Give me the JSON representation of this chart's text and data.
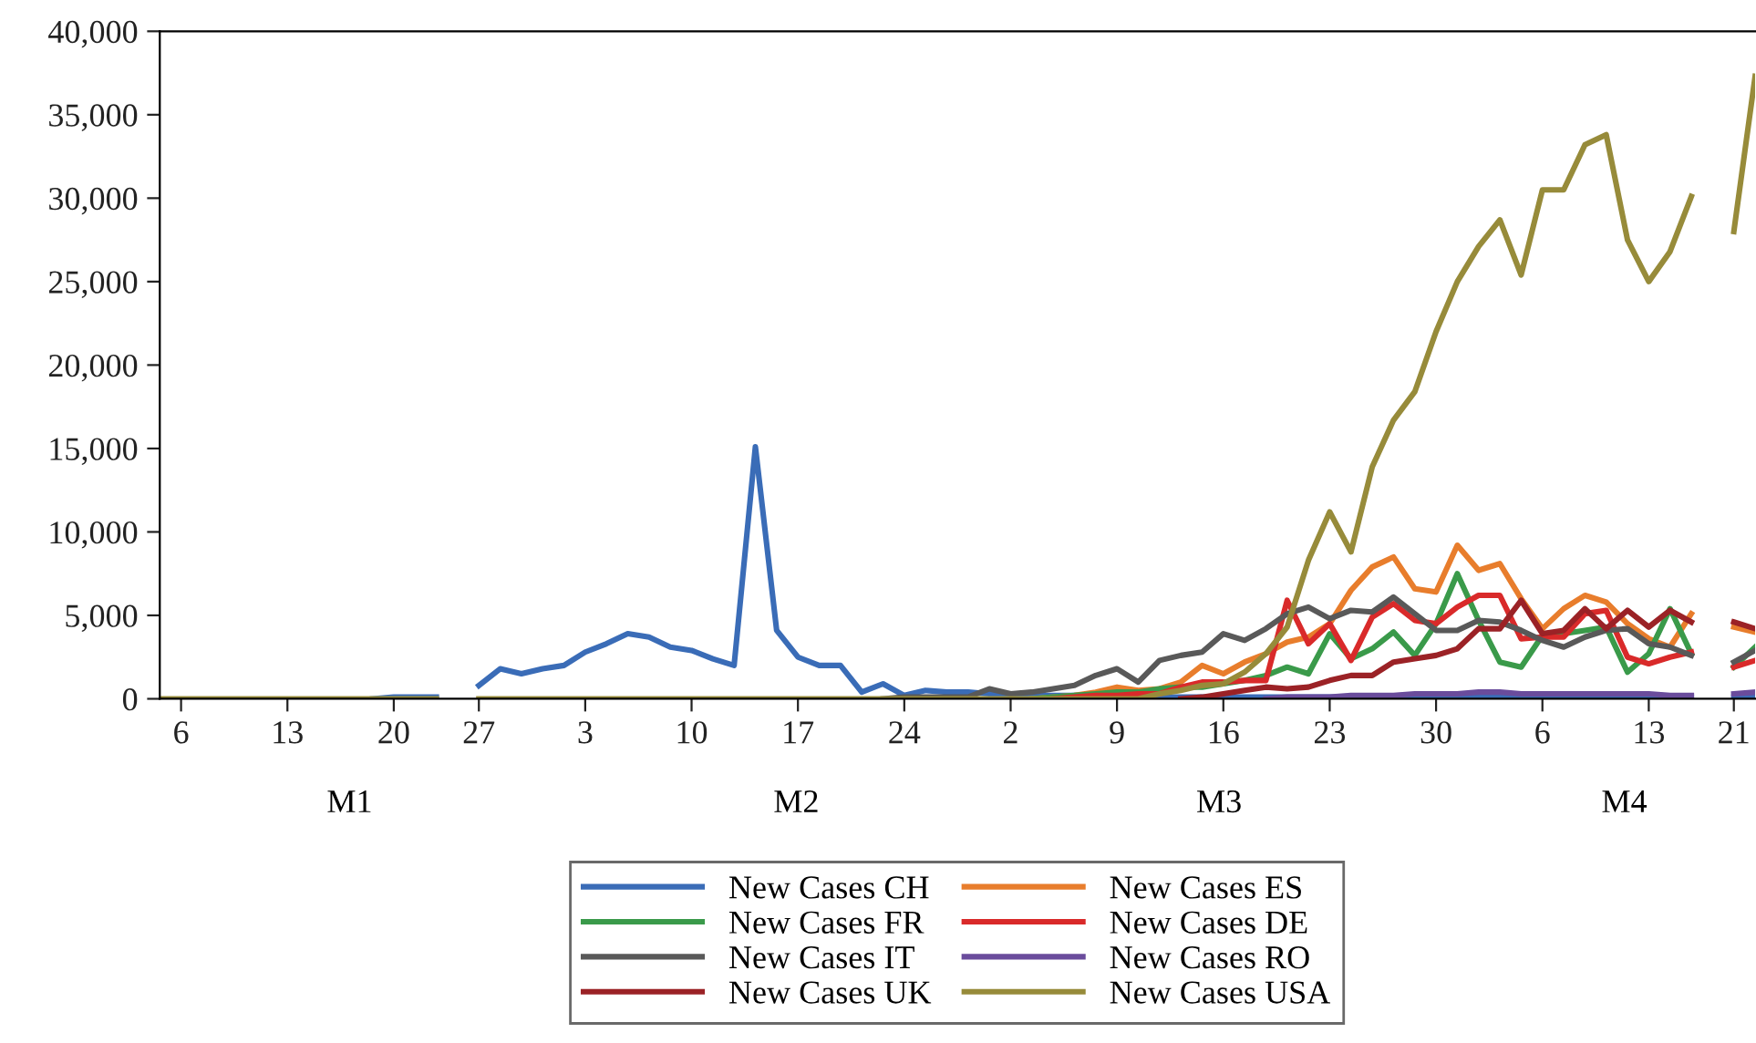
{
  "chart_data": {
    "type": "line",
    "annotations": [
      "M1",
      "M2",
      "M3",
      "M4"
    ],
    "categories": [
      null,
      "6",
      null,
      null,
      null,
      null,
      "13",
      null,
      null,
      null,
      null,
      "20",
      null,
      null,
      null,
      "27",
      null,
      null,
      null,
      null,
      "3",
      null,
      null,
      null,
      null,
      "10",
      null,
      null,
      null,
      null,
      "17",
      null,
      null,
      null,
      null,
      "24",
      null,
      null,
      null,
      null,
      "2",
      null,
      null,
      null,
      null,
      "9",
      null,
      null,
      null,
      null,
      "16",
      null,
      null,
      null,
      null,
      "23",
      null,
      null,
      null,
      null,
      "30",
      null,
      null,
      null,
      null,
      "6",
      null,
      null,
      null,
      null,
      "13",
      null,
      null,
      null,
      "21",
      null
    ],
    "ylim": [
      0,
      40000
    ],
    "yticks": [
      {
        "value": 0,
        "label": "0"
      },
      {
        "value": 5000,
        "label": "5,000"
      },
      {
        "value": 10000,
        "label": "10,000"
      },
      {
        "value": 15000,
        "label": "15,000"
      },
      {
        "value": 20000,
        "label": "20,000"
      },
      {
        "value": 25000,
        "label": "25,000"
      },
      {
        "value": 30000,
        "label": "30,000"
      },
      {
        "value": 35000,
        "label": "35,000"
      },
      {
        "value": 40000,
        "label": "40,000"
      }
    ],
    "grid": false,
    "legend": "bottom",
    "marker": "none",
    "line_style": "solid",
    "series": [
      {
        "name": "New Cases CH",
        "color": "#3a6cb7",
        "values": [
          null,
          null,
          null,
          null,
          null,
          null,
          null,
          null,
          null,
          null,
          0,
          100,
          100,
          100,
          null,
          800,
          1800,
          1500,
          1800,
          2000,
          2800,
          3300,
          3900,
          3700,
          3100,
          2900,
          2400,
          2000,
          15100,
          4100,
          2500,
          2000,
          2000,
          400,
          900,
          200,
          500,
          400,
          400,
          300,
          200,
          200,
          200,
          200,
          200,
          200,
          200,
          100,
          100,
          100,
          100,
          100,
          100,
          100,
          100,
          100,
          100,
          100,
          100,
          100,
          100,
          100,
          100,
          100,
          100,
          100,
          100,
          100,
          100,
          100,
          100,
          100,
          100,
          null,
          100,
          100
        ]
      },
      {
        "name": "New Cases ES",
        "color": "#e87d2c",
        "values": [
          null,
          null,
          null,
          null,
          null,
          null,
          null,
          null,
          null,
          null,
          null,
          null,
          null,
          null,
          null,
          null,
          null,
          null,
          null,
          null,
          null,
          null,
          null,
          null,
          null,
          null,
          null,
          null,
          null,
          null,
          null,
          null,
          null,
          null,
          null,
          null,
          null,
          null,
          null,
          null,
          null,
          0,
          100,
          200,
          400,
          700,
          500,
          600,
          1000,
          2000,
          1500,
          2200,
          2700,
          3400,
          3700,
          4500,
          6500,
          7900,
          8500,
          6600,
          6400,
          9200,
          7700,
          8100,
          6000,
          4200,
          5400,
          6200,
          5800,
          4500,
          3600,
          3100,
          5100,
          null,
          4300,
          4000
        ]
      },
      {
        "name": "New Cases FR",
        "color": "#3a9a4a",
        "values": [
          null,
          null,
          null,
          null,
          null,
          null,
          null,
          null,
          null,
          null,
          null,
          null,
          null,
          null,
          null,
          null,
          null,
          null,
          null,
          null,
          null,
          null,
          null,
          null,
          null,
          null,
          null,
          null,
          null,
          null,
          null,
          null,
          null,
          null,
          null,
          null,
          null,
          null,
          null,
          null,
          null,
          0,
          100,
          200,
          300,
          400,
          400,
          600,
          700,
          700,
          900,
          1100,
          1400,
          1900,
          1500,
          3900,
          2400,
          3000,
          4000,
          2600,
          4500,
          7500,
          4700,
          2200,
          1900,
          3800,
          3900,
          4100,
          4300,
          1600,
          2700,
          5400,
          2700,
          null,
          1900,
          3100
        ]
      },
      {
        "name": "New Cases DE",
        "color": "#d92a2a",
        "values": [
          null,
          null,
          null,
          null,
          null,
          null,
          null,
          null,
          null,
          null,
          null,
          null,
          null,
          null,
          null,
          null,
          null,
          null,
          null,
          null,
          null,
          null,
          null,
          null,
          null,
          null,
          null,
          null,
          null,
          null,
          null,
          null,
          null,
          null,
          null,
          null,
          null,
          null,
          null,
          null,
          null,
          null,
          0,
          100,
          200,
          200,
          300,
          300,
          700,
          1000,
          1000,
          1100,
          1100,
          5900,
          3300,
          4500,
          2300,
          4900,
          5700,
          4700,
          4500,
          5500,
          6200,
          6200,
          3600,
          3700,
          3700,
          5100,
          5300,
          2500,
          2100,
          2500,
          2800,
          null,
          1900,
          2300
        ]
      },
      {
        "name": "New Cases IT",
        "color": "#595959",
        "values": [
          null,
          null,
          null,
          null,
          null,
          null,
          null,
          null,
          null,
          null,
          null,
          null,
          null,
          null,
          null,
          null,
          null,
          null,
          null,
          null,
          null,
          null,
          null,
          null,
          null,
          null,
          null,
          null,
          null,
          null,
          null,
          null,
          null,
          null,
          0,
          100,
          100,
          100,
          100,
          600,
          300,
          400,
          600,
          800,
          1400,
          1800,
          1000,
          2300,
          2600,
          2800,
          3900,
          3500,
          4200,
          5100,
          5500,
          4800,
          5300,
          5200,
          6100,
          5100,
          4100,
          4100,
          4700,
          4600,
          4100,
          3500,
          3100,
          3700,
          4100,
          4200,
          3300,
          3100,
          2600,
          null,
          2200,
          2900
        ]
      },
      {
        "name": "New Cases RO",
        "color": "#6a4c9c",
        "values": [
          null,
          null,
          null,
          null,
          null,
          null,
          null,
          null,
          null,
          null,
          null,
          null,
          null,
          null,
          null,
          null,
          null,
          null,
          null,
          null,
          null,
          null,
          null,
          null,
          null,
          null,
          null,
          null,
          null,
          null,
          null,
          null,
          null,
          null,
          null,
          null,
          null,
          null,
          null,
          null,
          null,
          null,
          null,
          null,
          null,
          null,
          null,
          null,
          null,
          null,
          null,
          null,
          0,
          100,
          100,
          100,
          200,
          200,
          200,
          300,
          300,
          300,
          400,
          400,
          300,
          300,
          300,
          300,
          300,
          300,
          300,
          200,
          200,
          null,
          300,
          400
        ]
      },
      {
        "name": "New Cases UK",
        "color": "#9b2226",
        "values": [
          null,
          null,
          null,
          null,
          null,
          null,
          null,
          null,
          null,
          null,
          null,
          null,
          null,
          null,
          null,
          null,
          null,
          null,
          null,
          null,
          null,
          null,
          null,
          null,
          null,
          null,
          null,
          null,
          null,
          null,
          null,
          null,
          null,
          null,
          null,
          null,
          null,
          null,
          null,
          null,
          null,
          null,
          null,
          null,
          null,
          null,
          null,
          null,
          0,
          100,
          300,
          500,
          700,
          600,
          700,
          1100,
          1400,
          1400,
          2200,
          2400,
          2600,
          3000,
          4200,
          4200,
          5900,
          3900,
          4100,
          5400,
          4200,
          5300,
          4300,
          5300,
          4600,
          null,
          4600,
          4200
        ]
      },
      {
        "name": "New Cases USA",
        "color": "#978b3a",
        "values": [
          0,
          0,
          0,
          0,
          0,
          0,
          0,
          0,
          0,
          0,
          0,
          0,
          0,
          0,
          null,
          0,
          0,
          0,
          0,
          0,
          0,
          0,
          0,
          0,
          0,
          0,
          0,
          0,
          0,
          0,
          0,
          0,
          0,
          0,
          0,
          0,
          0,
          0,
          0,
          0,
          0,
          0,
          0,
          0,
          0,
          0,
          0,
          300,
          500,
          800,
          900,
          1600,
          2700,
          4300,
          8300,
          11200,
          8800,
          13900,
          16700,
          18400,
          22000,
          25000,
          27100,
          28700,
          25400,
          30500,
          30500,
          33200,
          33800,
          27500,
          25000,
          26800,
          30100,
          null,
          28000,
          37300
        ]
      }
    ]
  }
}
